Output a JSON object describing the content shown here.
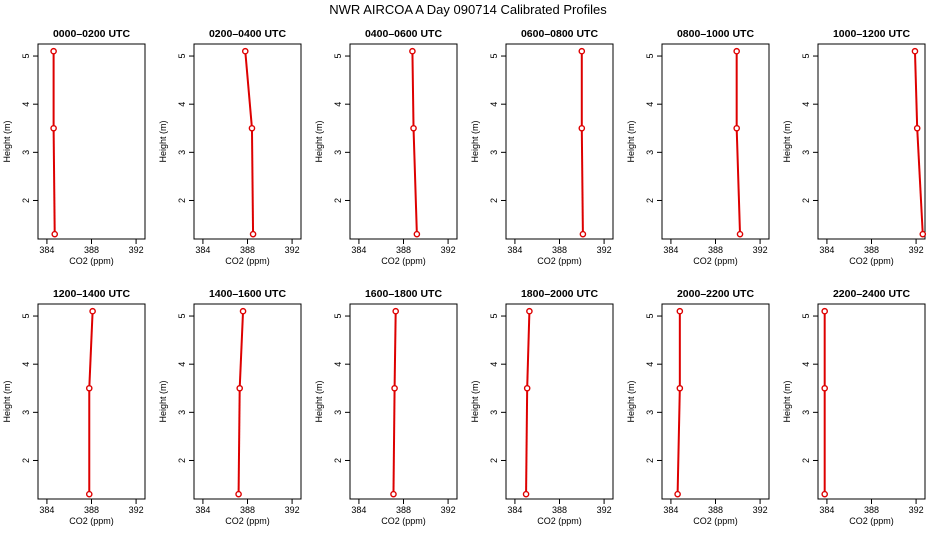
{
  "title": "NWR AIRCOA A  Day 090714  Calibrated Profiles",
  "colors": {
    "line": "#dd0000",
    "marker": "#dd0000",
    "axis": "#000000"
  },
  "chart_data": [
    {
      "type": "line",
      "title": "0000–0200 UTC",
      "xlabel": "CO2 (ppm)",
      "ylabel": "Height (m)",
      "xlim": [
        383.2,
        392.8
      ],
      "ylim": [
        1.2,
        5.25
      ],
      "xticks": [
        384,
        388,
        392
      ],
      "yticks": [
        2,
        3,
        4,
        5
      ],
      "x": [
        384.7,
        384.6,
        384.6
      ],
      "y": [
        1.3,
        3.5,
        5.1
      ]
    },
    {
      "type": "line",
      "title": "0200–0400 UTC",
      "xlabel": "CO2 (ppm)",
      "ylabel": "Height (m)",
      "xlim": [
        383.2,
        392.8
      ],
      "ylim": [
        1.2,
        5.25
      ],
      "xticks": [
        384,
        388,
        392
      ],
      "yticks": [
        2,
        3,
        4,
        5
      ],
      "x": [
        388.5,
        388.4,
        387.8
      ],
      "y": [
        1.3,
        3.5,
        5.1
      ]
    },
    {
      "type": "line",
      "title": "0400–0600 UTC",
      "xlabel": "CO2 (ppm)",
      "ylabel": "Height (m)",
      "xlim": [
        383.2,
        392.8
      ],
      "ylim": [
        1.2,
        5.25
      ],
      "xticks": [
        384,
        388,
        392
      ],
      "yticks": [
        2,
        3,
        4,
        5
      ],
      "x": [
        389.2,
        388.9,
        388.8
      ],
      "y": [
        1.3,
        3.5,
        5.1
      ]
    },
    {
      "type": "line",
      "title": "0600–0800 UTC",
      "xlabel": "CO2 (ppm)",
      "ylabel": "Height (m)",
      "xlim": [
        383.2,
        392.8
      ],
      "ylim": [
        1.2,
        5.25
      ],
      "xticks": [
        384,
        388,
        392
      ],
      "yticks": [
        2,
        3,
        4,
        5
      ],
      "x": [
        390.1,
        390.0,
        390.0
      ],
      "y": [
        1.3,
        3.5,
        5.1
      ]
    },
    {
      "type": "line",
      "title": "0800–1000 UTC",
      "xlabel": "CO2 (ppm)",
      "ylabel": "Height (m)",
      "xlim": [
        383.2,
        392.8
      ],
      "ylim": [
        1.2,
        5.25
      ],
      "xticks": [
        384,
        388,
        392
      ],
      "yticks": [
        2,
        3,
        4,
        5
      ],
      "x": [
        390.2,
        389.9,
        389.9
      ],
      "y": [
        1.3,
        3.5,
        5.1
      ]
    },
    {
      "type": "line",
      "title": "1000–1200 UTC",
      "xlabel": "CO2 (ppm)",
      "ylabel": "Height (m)",
      "xlim": [
        383.2,
        392.8
      ],
      "ylim": [
        1.2,
        5.25
      ],
      "xticks": [
        384,
        388,
        392
      ],
      "yticks": [
        2,
        3,
        4,
        5
      ],
      "x": [
        392.6,
        392.1,
        391.9
      ],
      "y": [
        1.3,
        3.5,
        5.1
      ]
    },
    {
      "type": "line",
      "title": "1200–1400 UTC",
      "xlabel": "CO2 (ppm)",
      "ylabel": "Height (m)",
      "xlim": [
        383.2,
        392.8
      ],
      "ylim": [
        1.2,
        5.25
      ],
      "xticks": [
        384,
        388,
        392
      ],
      "yticks": [
        2,
        3,
        4,
        5
      ],
      "x": [
        387.8,
        387.8,
        388.1
      ],
      "y": [
        1.3,
        3.5,
        5.1
      ]
    },
    {
      "type": "line",
      "title": "1400–1600 UTC",
      "xlabel": "CO2 (ppm)",
      "ylabel": "Height (m)",
      "xlim": [
        383.2,
        392.8
      ],
      "ylim": [
        1.2,
        5.25
      ],
      "xticks": [
        384,
        388,
        392
      ],
      "yticks": [
        2,
        3,
        4,
        5
      ],
      "x": [
        387.2,
        387.3,
        387.6
      ],
      "y": [
        1.3,
        3.5,
        5.1
      ]
    },
    {
      "type": "line",
      "title": "1600–1800 UTC",
      "xlabel": "CO2 (ppm)",
      "ylabel": "Height (m)",
      "xlim": [
        383.2,
        392.8
      ],
      "ylim": [
        1.2,
        5.25
      ],
      "xticks": [
        384,
        388,
        392
      ],
      "yticks": [
        2,
        3,
        4,
        5
      ],
      "x": [
        387.1,
        387.2,
        387.3
      ],
      "y": [
        1.3,
        3.5,
        5.1
      ]
    },
    {
      "type": "line",
      "title": "1800–2000 UTC",
      "xlabel": "CO2 (ppm)",
      "ylabel": "Height (m)",
      "xlim": [
        383.2,
        392.8
      ],
      "ylim": [
        1.2,
        5.25
      ],
      "xticks": [
        384,
        388,
        392
      ],
      "yticks": [
        2,
        3,
        4,
        5
      ],
      "x": [
        385.0,
        385.1,
        385.3
      ],
      "y": [
        1.3,
        3.5,
        5.1
      ]
    },
    {
      "type": "line",
      "title": "2000–2200 UTC",
      "xlabel": "CO2 (ppm)",
      "ylabel": "Height (m)",
      "xlim": [
        383.2,
        392.8
      ],
      "ylim": [
        1.2,
        5.25
      ],
      "xticks": [
        384,
        388,
        392
      ],
      "yticks": [
        2,
        3,
        4,
        5
      ],
      "x": [
        384.6,
        384.8,
        384.8
      ],
      "y": [
        1.3,
        3.5,
        5.1
      ]
    },
    {
      "type": "line",
      "title": "2200–2400 UTC",
      "xlabel": "CO2 (ppm)",
      "ylabel": "Height (m)",
      "xlim": [
        383.2,
        392.8
      ],
      "ylim": [
        1.2,
        5.25
      ],
      "xticks": [
        384,
        388,
        392
      ],
      "yticks": [
        2,
        3,
        4,
        5
      ],
      "x": [
        383.8,
        383.8,
        383.8
      ],
      "y": [
        1.3,
        3.5,
        5.1
      ]
    }
  ]
}
